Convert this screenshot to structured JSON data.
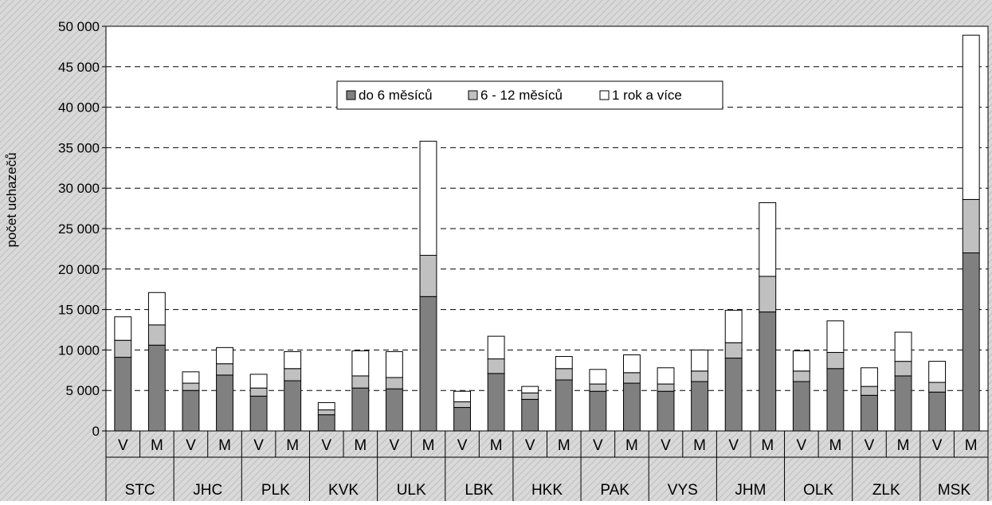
{
  "chart_data": {
    "type": "bar",
    "stacked": true,
    "title": "",
    "xlabel": "",
    "ylabel": "počet uchazečů",
    "ylim": [
      0,
      50000
    ],
    "yticks": [
      0,
      5000,
      10000,
      15000,
      20000,
      25000,
      30000,
      35000,
      40000,
      45000,
      50000
    ],
    "ytick_labels": [
      "0",
      "5 000",
      "10 000",
      "15 000",
      "20 000",
      "25 000",
      "30 000",
      "35 000",
      "40 000",
      "45 000",
      "50 000"
    ],
    "grid": "horizontal dashed",
    "legend_position": "top-center",
    "regions": [
      "STC",
      "JHC",
      "PLK",
      "KVK",
      "ULK",
      "LBK",
      "HKK",
      "PAK",
      "VYS",
      "JHM",
      "OLK",
      "ZLK",
      "MSK"
    ],
    "subcategories": [
      "V",
      "M"
    ],
    "series": [
      {
        "name": "do 6 měsíců",
        "color": "#808080",
        "values": [
          9100,
          10600,
          5000,
          6900,
          4300,
          6200,
          2000,
          5300,
          5200,
          16600,
          2900,
          7100,
          3900,
          6300,
          4900,
          5900,
          4900,
          6100,
          9000,
          14700,
          6100,
          7700,
          4400,
          6800,
          4800,
          22000
        ]
      },
      {
        "name": "6 - 12 měsíců",
        "color": "#c0c0c0",
        "values": [
          2100,
          2500,
          900,
          1400,
          1000,
          1500,
          600,
          1500,
          1400,
          5100,
          700,
          1800,
          800,
          1400,
          900,
          1300,
          900,
          1300,
          1900,
          4400,
          1300,
          2000,
          1100,
          1800,
          1200,
          6600
        ]
      },
      {
        "name": "1 rok a více",
        "color": "#ffffff",
        "values": [
          2900,
          4000,
          1400,
          2000,
          1700,
          2100,
          900,
          3100,
          3200,
          14100,
          1300,
          2800,
          800,
          1500,
          1800,
          2200,
          2000,
          2600,
          4000,
          9100,
          2500,
          3900,
          2300,
          3600,
          2600,
          20300
        ]
      }
    ],
    "background": "#d4d4d4"
  }
}
